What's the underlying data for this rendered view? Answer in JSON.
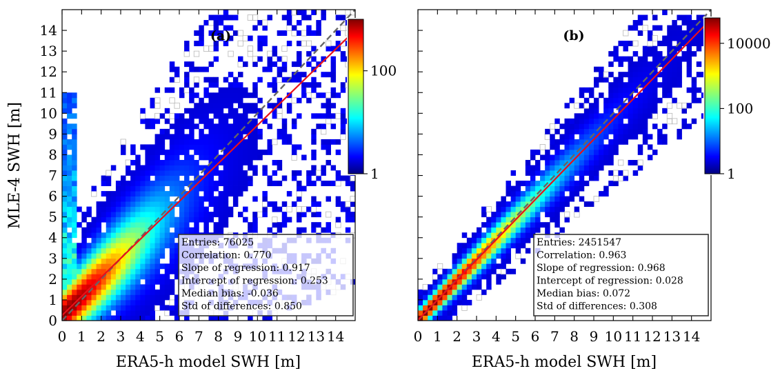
{
  "figure": {
    "y_axis_title": "MLE-4 SWH [m]",
    "x_axis_title": "ERA5-h model SWH [m]"
  },
  "chart_data": [
    {
      "type": "heatmap",
      "panel_label": "(a)",
      "xlabel": "ERA5-h model SWH [m]",
      "ylabel": "MLE-4 SWH [m]",
      "xlim": [
        0,
        15
      ],
      "ylim": [
        0,
        15
      ],
      "x_ticks": [
        "0",
        "1",
        "2",
        "3",
        "4",
        "5",
        "6",
        "7",
        "8",
        "9",
        "10",
        "11",
        "12",
        "13",
        "14"
      ],
      "y_ticks": [
        "0",
        "1",
        "2",
        "3",
        "4",
        "5",
        "6",
        "7",
        "8",
        "9",
        "10",
        "11",
        "12",
        "13",
        "14"
      ],
      "colorbar": {
        "scale": "log",
        "range": [
          1,
          1000
        ],
        "tick_labels": [
          "1",
          "100"
        ],
        "tick_values": [
          1,
          100
        ],
        "colormap": "jet"
      },
      "one_to_one_line": {
        "style": "dashed",
        "color": "#666666"
      },
      "regression": {
        "slope": 0.917,
        "intercept": 0.253,
        "color": "#e8101a"
      },
      "stats_labels": [
        "Entries: 76025",
        "Correlation: 0.770",
        "Slope of regression: 0.917",
        "Intercept of regression: 0.253",
        "Median bias: -0.036",
        "Std of differences: 0.850"
      ],
      "stats": {
        "entries": 76025,
        "correlation": 0.77,
        "slope": 0.917,
        "intercept": 0.253,
        "median_bias": -0.036,
        "std_differences": 0.85
      },
      "distribution": {
        "peak_count": 1000,
        "spread": 0.85,
        "noise_left_column": true
      }
    },
    {
      "type": "heatmap",
      "panel_label": "(b)",
      "xlabel": "ERA5-h model SWH [m]",
      "ylabel": "",
      "xlim": [
        0,
        15
      ],
      "ylim": [
        0,
        15
      ],
      "x_ticks": [
        "0",
        "1",
        "2",
        "3",
        "4",
        "5",
        "6",
        "7",
        "8",
        "9",
        "10",
        "11",
        "12",
        "13",
        "14"
      ],
      "y_ticks": [],
      "colorbar": {
        "scale": "log",
        "range": [
          1,
          60000
        ],
        "tick_labels": [
          "1",
          "100",
          "10000"
        ],
        "tick_values": [
          1,
          100,
          10000
        ],
        "colormap": "jet"
      },
      "one_to_one_line": {
        "style": "dashed",
        "color": "#666666"
      },
      "regression": {
        "slope": 0.968,
        "intercept": 0.028,
        "color": "#e8101a"
      },
      "stats_labels": [
        "Entries: 2451547",
        "Correlation: 0.963",
        "Slope of regression: 0.968",
        "Intercept of regression: 0.028",
        "Median bias: 0.072",
        "Std of differences: 0.308"
      ],
      "stats": {
        "entries": 2451547,
        "correlation": 0.963,
        "slope": 0.968,
        "intercept": 0.028,
        "median_bias": 0.072,
        "std_differences": 0.308
      },
      "distribution": {
        "peak_count": 60000,
        "spread": 0.308,
        "noise_left_column": false
      }
    }
  ]
}
